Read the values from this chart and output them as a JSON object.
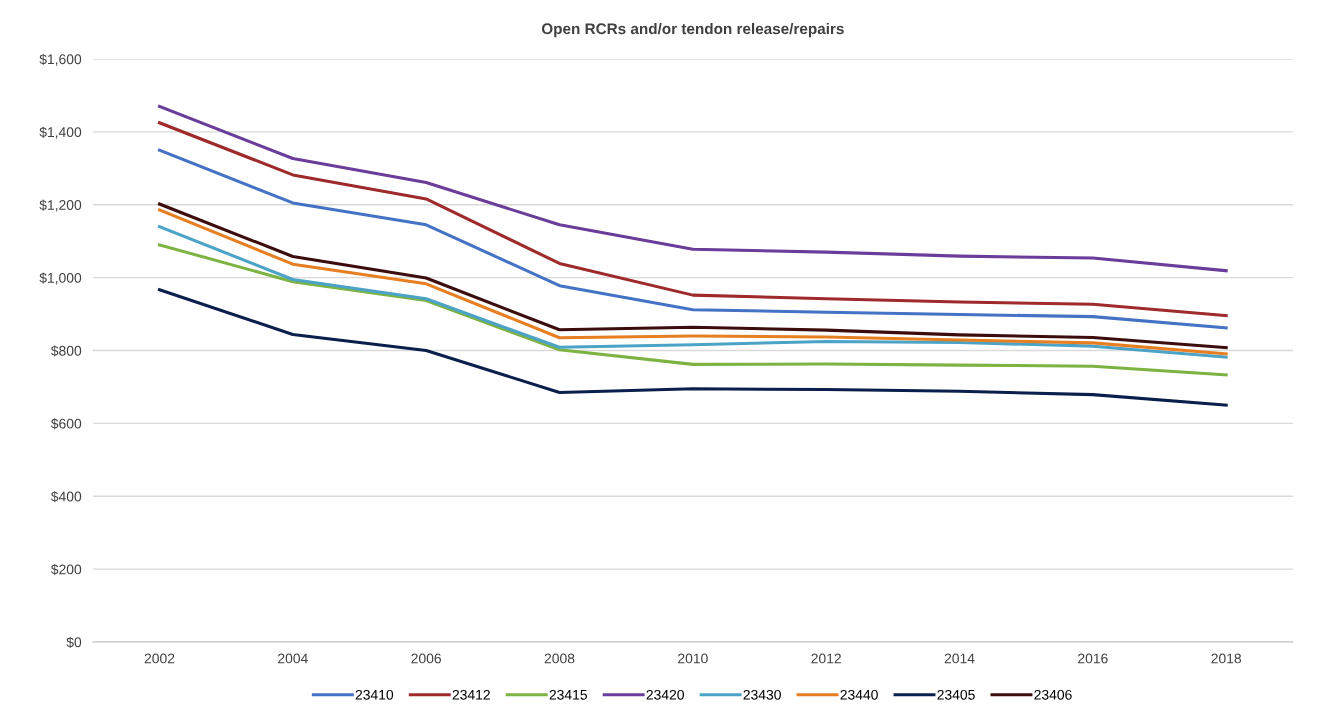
{
  "chart_data": {
    "type": "line",
    "title": "Open RCRs and/or tendon release/repairs",
    "categories": [
      "2002",
      "2004",
      "2006",
      "2008",
      "2010",
      "2012",
      "2014",
      "2016",
      "2018"
    ],
    "series": [
      {
        "name": "23410",
        "color": "#4472c4",
        "values": [
          1350,
          1205,
          1145,
          978,
          912,
          905,
          899,
          893,
          862
        ]
      },
      {
        "name": "23412",
        "color": "#9e2a2b",
        "values": [
          1425,
          1282,
          1216,
          1039,
          952,
          942,
          933,
          927,
          896
        ]
      },
      {
        "name": "23415",
        "color": "#7cb342",
        "values": [
          1090,
          989,
          937,
          802,
          762,
          763,
          760,
          757,
          733
        ]
      },
      {
        "name": "23420",
        "color": "#6a3d9a",
        "values": [
          1470,
          1327,
          1261,
          1145,
          1078,
          1070,
          1059,
          1054,
          1019
        ]
      },
      {
        "name": "23430",
        "color": "#4ba3c7",
        "values": [
          1140,
          995,
          942,
          809,
          816,
          825,
          822,
          812,
          782
        ]
      },
      {
        "name": "23440",
        "color": "#e67e22",
        "values": [
          1186,
          1037,
          983,
          835,
          840,
          837,
          829,
          821,
          791
        ]
      },
      {
        "name": "23405",
        "color": "#0b1f4d",
        "values": [
          967,
          844,
          800,
          685,
          695,
          693,
          688,
          679,
          650
        ]
      },
      {
        "name": "23406",
        "color": "#3d0c0c",
        "values": [
          1202,
          1058,
          999,
          857,
          864,
          856,
          843,
          836,
          808
        ]
      }
    ],
    "ylim": [
      0,
      1600
    ],
    "yticks": [
      {
        "value": 0,
        "label": "$0"
      },
      {
        "value": 200,
        "label": "$200"
      },
      {
        "value": 400,
        "label": "$400"
      },
      {
        "value": 600,
        "label": "$600"
      },
      {
        "value": 800,
        "label": "$800"
      },
      {
        "value": 1000,
        "label": "$1,000"
      },
      {
        "value": 1200,
        "label": "$1,200"
      },
      {
        "value": 1400,
        "label": "$1,400"
      },
      {
        "value": 1600,
        "label": "$1,600"
      }
    ],
    "grid": "y",
    "legend": "bottom",
    "marker": "none",
    "line_style": "solid"
  }
}
